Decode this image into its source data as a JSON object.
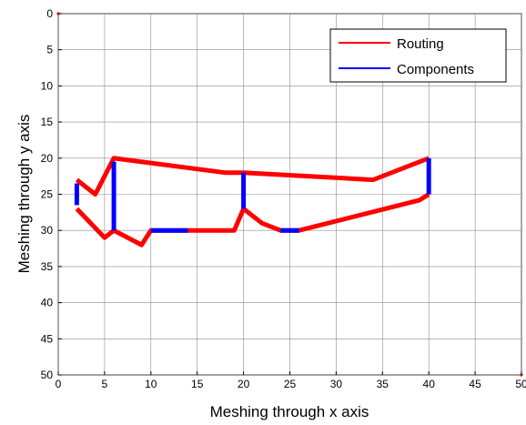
{
  "chart_data": {
    "type": "line",
    "xlabel": "Meshing through x axis",
    "ylabel": "Meshing through y axis",
    "xlim": [
      0,
      50
    ],
    "ylim": [
      0,
      50
    ],
    "y_reversed": true,
    "x_ticks": [
      0,
      5,
      10,
      15,
      20,
      25,
      30,
      35,
      40,
      45,
      50
    ],
    "y_ticks": [
      0,
      5,
      10,
      15,
      20,
      25,
      30,
      35,
      40,
      45,
      50
    ],
    "grid": true,
    "legend_position": "top-right",
    "series": [
      {
        "name": "Routing",
        "color": "#ff0000",
        "segments": [
          [
            [
              2,
              23
            ],
            [
              4,
              25
            ],
            [
              6,
              20
            ],
            [
              18,
              22
            ],
            [
              20,
              22
            ],
            [
              34,
              23
            ],
            [
              40,
              20
            ]
          ],
          [
            [
              40,
              25
            ],
            [
              39,
              25.8
            ],
            [
              26,
              30
            ],
            [
              24,
              30
            ],
            [
              22,
              29
            ],
            [
              20,
              27
            ],
            [
              19,
              30
            ],
            [
              10,
              30
            ],
            [
              9,
              32
            ],
            [
              6,
              30
            ],
            [
              5,
              31
            ],
            [
              2,
              27
            ]
          ]
        ]
      },
      {
        "name": "Components",
        "color": "#0000ff",
        "segments": [
          [
            [
              2,
              23.5
            ],
            [
              2,
              26.5
            ]
          ],
          [
            [
              6,
              20.5
            ],
            [
              6,
              30
            ]
          ],
          [
            [
              10,
              30
            ],
            [
              14,
              30
            ]
          ],
          [
            [
              20,
              22
            ],
            [
              20,
              27
            ]
          ],
          [
            [
              24,
              30
            ],
            [
              26,
              30
            ]
          ],
          [
            [
              40,
              20
            ],
            [
              40,
              25
            ]
          ]
        ]
      }
    ]
  }
}
